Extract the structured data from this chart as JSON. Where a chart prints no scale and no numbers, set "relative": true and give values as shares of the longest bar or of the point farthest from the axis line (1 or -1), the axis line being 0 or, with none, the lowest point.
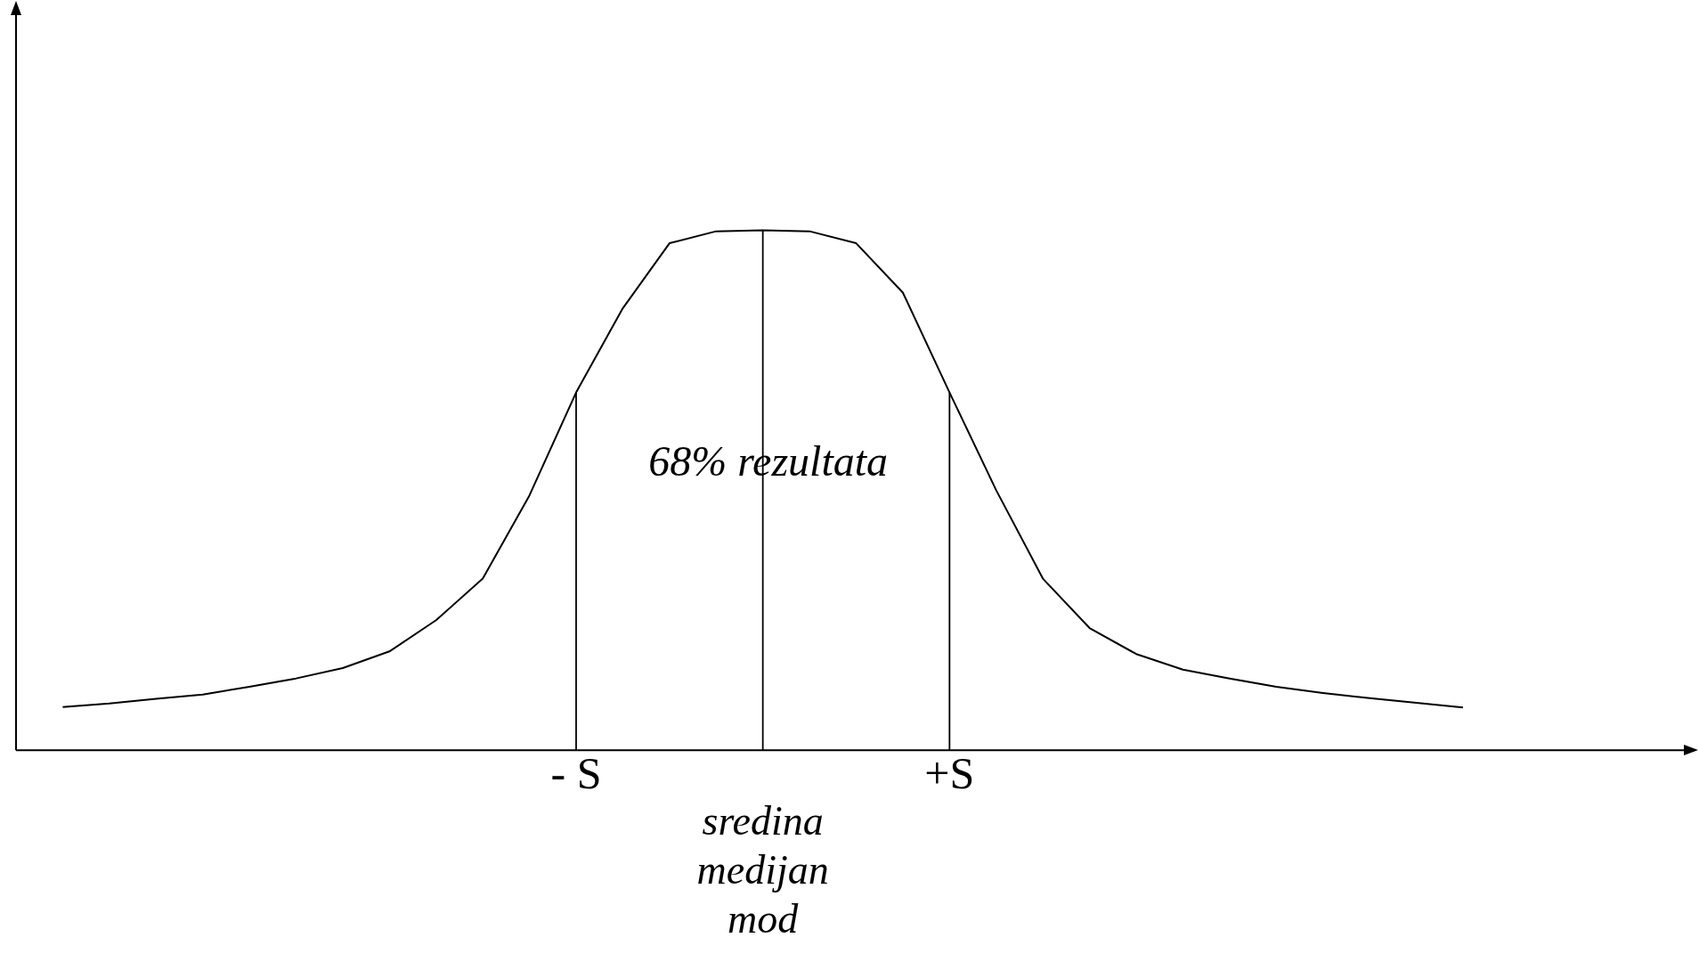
{
  "chart_data": {
    "type": "line",
    "relative": true,
    "categories": [
      null,
      null,
      null,
      null,
      null,
      null,
      null,
      null,
      null,
      null,
      null,
      null,
      "- S",
      null,
      null,
      null,
      "sredina\nmedijan\nmod",
      null,
      null,
      null,
      "+S",
      null,
      null,
      null,
      null,
      null,
      null,
      null,
      null,
      null,
      null,
      null,
      null,
      null,
      null,
      null,
      null
    ],
    "series": [
      {
        "color": "#000000",
        "values": [
          null,
          0.083,
          0.09,
          0.099,
          0.107,
          0.122,
          0.138,
          0.158,
          0.19,
          0.25,
          0.33,
          0.49,
          0.688,
          0.85,
          0.975,
          0.998,
          1,
          0.998,
          0.975,
          0.88,
          0.688,
          0.5,
          0.33,
          0.235,
          0.185,
          0.155,
          0.138,
          0.122,
          0.11,
          0.1,
          0.091,
          0.082,
          null,
          null,
          null,
          null,
          null
        ]
      }
    ],
    "ref_lines": [
      {
        "axis": "x",
        "value": "- S"
      },
      {
        "axis": "x",
        "value": "sredina\nmedijan\nmod"
      },
      {
        "axis": "x",
        "value": "+S"
      }
    ],
    "annotations": [
      "68% rezultata"
    ],
    "legend": false,
    "marker": "none",
    "line_style": "solid"
  }
}
